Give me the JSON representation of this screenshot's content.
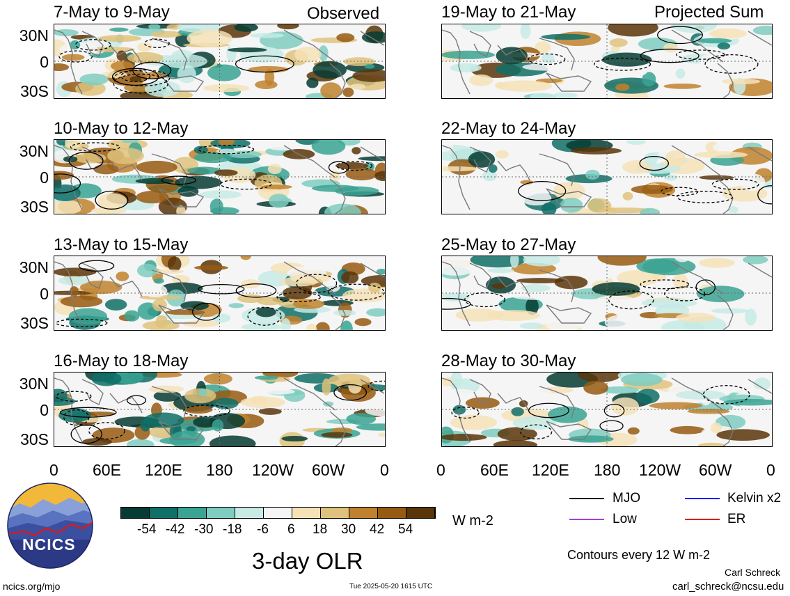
{
  "headers": {
    "observed": "Observed",
    "projected": "Projected Sum"
  },
  "panels_left": [
    {
      "title": "7-May to 9-May"
    },
    {
      "title": "10-May to 12-May"
    },
    {
      "title": "13-May to 15-May"
    },
    {
      "title": "16-May to 18-May"
    }
  ],
  "panels_right": [
    {
      "title": "19-May to 21-May"
    },
    {
      "title": "22-May to 24-May"
    },
    {
      "title": "25-May to 27-May"
    },
    {
      "title": "28-May to 30-May"
    }
  ],
  "lat_labels": [
    "30N",
    "0",
    "30S"
  ],
  "lon_labels": [
    "0",
    "60E",
    "120E",
    "180",
    "120W",
    "60W",
    "0"
  ],
  "colorbar": {
    "colors": [
      "#063c33",
      "#106f67",
      "#3aa393",
      "#7fcdc0",
      "#c7eae5",
      "#f5f5f5",
      "#f5e2b7",
      "#dfc27d",
      "#bf812d",
      "#965b12",
      "#593509"
    ],
    "labels": [
      "-54",
      "-42",
      "-30",
      "-18",
      "-6",
      "6",
      "18",
      "30",
      "42",
      "54"
    ],
    "units": "W m-2"
  },
  "title": "3-day OLR",
  "logo_text": "NCICS",
  "legend": {
    "items": [
      {
        "label": "MJO",
        "color": "#000000"
      },
      {
        "label": "Kelvin x2",
        "color": "#0000ff"
      },
      {
        "label": "Low",
        "color": "#a040e0"
      },
      {
        "label": "ER",
        "color": "#e01010"
      }
    ],
    "contours": "Contours every 12 W m-2"
  },
  "footer": {
    "url": "ncics.org/mjo",
    "timestamp": "Tue 2025-05-20 1615 UTC",
    "author": "Carl Schreck",
    "email": "carl_schreck@ncsu.edu"
  }
}
